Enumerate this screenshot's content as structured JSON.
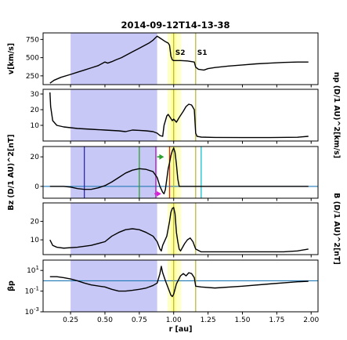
{
  "title": "2014-09-12T14-13-38",
  "colors": {
    "shade": "#c8c8f7",
    "band_light": "#ffffc8",
    "band_dark": "#ffff9e",
    "marker_olive": "#b5b533",
    "zero_line": "#1f77b4",
    "curve": "#000000",
    "vline_blue": "#2b2bb8",
    "vline_green": "#2ca02c",
    "vline_purple": "#a12aa1",
    "vline_red": "#d62728",
    "vline_cyan": "#17becf",
    "arrow_green": "#2ca02c",
    "arrow_magenta": "#d61fd6"
  },
  "chart_data": {
    "type": "line",
    "x_axis": {
      "label": "r [au]",
      "range": [
        0.05,
        2.05
      ],
      "ticks": [
        0.25,
        0.5,
        0.75,
        1.0,
        1.25,
        1.5,
        1.75,
        2.0
      ],
      "tick_labels": [
        "0.25",
        "0.50",
        "0.75",
        "1.00",
        "1.25",
        "1.50",
        "1.75",
        "2.00"
      ]
    },
    "shaded_region": [
      0.25,
      0.88
    ],
    "highlight_bands": [
      [
        0.955,
        1.055
      ],
      [
        0.98,
        1.02
      ]
    ],
    "markers": [
      {
        "x": 1.0,
        "label": "S2"
      },
      {
        "x": 1.16,
        "label": "S1"
      }
    ],
    "panels": [
      {
        "name": "velocity",
        "ylabel": "v[km/s]",
        "ylabel_side": "left",
        "scale": "linear",
        "ylim": [
          130,
          840
        ],
        "yticks": [
          250,
          500,
          750
        ],
        "ytick_labels": [
          "250",
          "500",
          "750"
        ],
        "points": [
          [
            0.1,
            150
          ],
          [
            0.13,
            190
          ],
          [
            0.18,
            230
          ],
          [
            0.25,
            270
          ],
          [
            0.3,
            300
          ],
          [
            0.35,
            330
          ],
          [
            0.4,
            360
          ],
          [
            0.45,
            390
          ],
          [
            0.48,
            420
          ],
          [
            0.5,
            440
          ],
          [
            0.52,
            425
          ],
          [
            0.55,
            445
          ],
          [
            0.58,
            470
          ],
          [
            0.62,
            500
          ],
          [
            0.66,
            540
          ],
          [
            0.7,
            580
          ],
          [
            0.74,
            620
          ],
          [
            0.78,
            660
          ],
          [
            0.82,
            700
          ],
          [
            0.85,
            740
          ],
          [
            0.88,
            795
          ],
          [
            0.9,
            770
          ],
          [
            0.92,
            745
          ],
          [
            0.94,
            720
          ],
          [
            0.96,
            700
          ],
          [
            0.97,
            670
          ],
          [
            0.98,
            520
          ],
          [
            0.99,
            470
          ],
          [
            1.0,
            460
          ],
          [
            1.02,
            460
          ],
          [
            1.05,
            460
          ],
          [
            1.1,
            455
          ],
          [
            1.15,
            440
          ],
          [
            1.16,
            370
          ],
          [
            1.18,
            340
          ],
          [
            1.22,
            330
          ],
          [
            1.25,
            350
          ],
          [
            1.3,
            365
          ],
          [
            1.4,
            385
          ],
          [
            1.5,
            400
          ],
          [
            1.6,
            415
          ],
          [
            1.7,
            425
          ],
          [
            1.8,
            435
          ],
          [
            1.9,
            440
          ],
          [
            1.98,
            440
          ]
        ]
      },
      {
        "name": "density",
        "ylabel": "np (D/1 AU)^2[km/s]",
        "ylabel_side": "right",
        "scale": "linear",
        "ylim": [
          0,
          33
        ],
        "yticks": [
          10,
          20,
          30
        ],
        "ytick_labels": [
          "10",
          "20",
          "30"
        ],
        "points": [
          [
            0.1,
            31
          ],
          [
            0.105,
            22
          ],
          [
            0.12,
            13
          ],
          [
            0.15,
            10
          ],
          [
            0.2,
            9
          ],
          [
            0.3,
            8
          ],
          [
            0.4,
            7.5
          ],
          [
            0.5,
            7
          ],
          [
            0.6,
            6.5
          ],
          [
            0.65,
            6
          ],
          [
            0.7,
            7
          ],
          [
            0.75,
            6.8
          ],
          [
            0.8,
            6.5
          ],
          [
            0.85,
            6
          ],
          [
            0.88,
            5
          ],
          [
            0.9,
            3.5
          ],
          [
            0.92,
            3
          ],
          [
            0.93,
            10
          ],
          [
            0.95,
            16
          ],
          [
            0.96,
            17
          ],
          [
            0.975,
            15
          ],
          [
            0.99,
            13
          ],
          [
            1.0,
            14
          ],
          [
            1.02,
            12
          ],
          [
            1.04,
            15
          ],
          [
            1.07,
            19
          ],
          [
            1.09,
            22
          ],
          [
            1.11,
            23.5
          ],
          [
            1.13,
            23
          ],
          [
            1.15,
            20
          ],
          [
            1.16,
            5
          ],
          [
            1.17,
            3
          ],
          [
            1.2,
            2.5
          ],
          [
            1.3,
            2.3
          ],
          [
            1.5,
            2.2
          ],
          [
            1.7,
            2.2
          ],
          [
            1.9,
            2.4
          ],
          [
            1.98,
            3
          ]
        ]
      },
      {
        "name": "bz",
        "ylabel": "Bz (D/1 AU)^2[nT]",
        "ylabel_side": "left",
        "scale": "linear",
        "ylim": [
          -8,
          27
        ],
        "yticks": [
          0,
          20
        ],
        "ytick_labels": [
          "0",
          "20"
        ],
        "zero_line": 0,
        "points": [
          [
            0.1,
            0
          ],
          [
            0.2,
            0
          ],
          [
            0.25,
            -0.5
          ],
          [
            0.3,
            -1.5
          ],
          [
            0.35,
            -2
          ],
          [
            0.4,
            -2
          ],
          [
            0.45,
            -1
          ],
          [
            0.5,
            0.5
          ],
          [
            0.55,
            3
          ],
          [
            0.6,
            6
          ],
          [
            0.65,
            9
          ],
          [
            0.7,
            11
          ],
          [
            0.75,
            12
          ],
          [
            0.8,
            11.5
          ],
          [
            0.85,
            10
          ],
          [
            0.88,
            6
          ],
          [
            0.9,
            0
          ],
          [
            0.92,
            -4
          ],
          [
            0.93,
            -5
          ],
          [
            0.94,
            -2
          ],
          [
            0.95,
            5
          ],
          [
            0.96,
            12
          ],
          [
            0.97,
            16
          ],
          [
            0.98,
            21
          ],
          [
            0.99,
            24
          ],
          [
            1.0,
            26
          ],
          [
            1.01,
            23
          ],
          [
            1.02,
            15
          ],
          [
            1.03,
            5
          ],
          [
            1.04,
            0
          ],
          [
            1.1,
            0
          ],
          [
            1.2,
            0
          ],
          [
            1.5,
            0
          ],
          [
            1.98,
            0
          ]
        ],
        "vlines": [
          {
            "x": 0.35,
            "color": "vline_blue"
          },
          {
            "x": 0.75,
            "color": "vline_green"
          },
          {
            "x": 0.87,
            "color": "vline_purple"
          },
          {
            "x": 0.97,
            "color": "vline_red"
          },
          {
            "x": 1.2,
            "color": "vline_cyan"
          }
        ],
        "arrows": [
          {
            "from": [
              0.88,
              20
            ],
            "to": [
              0.93,
              20
            ],
            "color": "arrow_green"
          },
          {
            "from": [
              0.86,
              -5
            ],
            "to": [
              0.91,
              -5
            ],
            "color": "arrow_magenta"
          }
        ]
      },
      {
        "name": "b",
        "ylabel": "B (D/1 AU)^2[nT]",
        "ylabel_side": "right",
        "scale": "linear",
        "ylim": [
          2,
          30
        ],
        "yticks": [
          10,
          20
        ],
        "ytick_labels": [
          "10",
          "20"
        ],
        "points": [
          [
            0.1,
            10
          ],
          [
            0.12,
            7
          ],
          [
            0.15,
            6
          ],
          [
            0.2,
            5.5
          ],
          [
            0.3,
            6
          ],
          [
            0.4,
            7
          ],
          [
            0.5,
            9
          ],
          [
            0.55,
            12
          ],
          [
            0.6,
            14
          ],
          [
            0.65,
            15.5
          ],
          [
            0.7,
            16
          ],
          [
            0.75,
            15.5
          ],
          [
            0.8,
            14
          ],
          [
            0.85,
            12
          ],
          [
            0.88,
            9
          ],
          [
            0.9,
            5
          ],
          [
            0.91,
            4
          ],
          [
            0.92,
            7
          ],
          [
            0.95,
            12
          ],
          [
            0.97,
            20
          ],
          [
            0.98,
            25
          ],
          [
            0.99,
            27
          ],
          [
            1.0,
            27.5
          ],
          [
            1.01,
            24
          ],
          [
            1.02,
            14
          ],
          [
            1.03,
            9
          ],
          [
            1.04,
            5
          ],
          [
            1.05,
            4
          ],
          [
            1.08,
            8
          ],
          [
            1.1,
            10
          ],
          [
            1.12,
            11
          ],
          [
            1.14,
            9
          ],
          [
            1.16,
            5
          ],
          [
            1.2,
            3.5
          ],
          [
            1.4,
            3.5
          ],
          [
            1.6,
            3.5
          ],
          [
            1.8,
            3.5
          ],
          [
            1.9,
            4
          ],
          [
            1.98,
            5
          ]
        ]
      },
      {
        "name": "beta",
        "ylabel": "βp",
        "ylabel_side": "left",
        "scale": "log",
        "ylim": [
          0.001,
          100
        ],
        "yticks": [
          0.001,
          0.1,
          10
        ],
        "ytick_labels": [
          "10^-3",
          "10^-1",
          "10^1"
        ],
        "zero_line": 1,
        "points": [
          [
            0.1,
            2.5
          ],
          [
            0.15,
            2.5
          ],
          [
            0.2,
            2
          ],
          [
            0.25,
            1.5
          ],
          [
            0.3,
            1
          ],
          [
            0.35,
            0.6
          ],
          [
            0.4,
            0.4
          ],
          [
            0.5,
            0.25
          ],
          [
            0.55,
            0.15
          ],
          [
            0.6,
            0.1
          ],
          [
            0.65,
            0.1
          ],
          [
            0.7,
            0.12
          ],
          [
            0.75,
            0.15
          ],
          [
            0.8,
            0.2
          ],
          [
            0.85,
            0.35
          ],
          [
            0.88,
            0.6
          ],
          [
            0.9,
            5
          ],
          [
            0.91,
            25
          ],
          [
            0.92,
            6
          ],
          [
            0.94,
            1
          ],
          [
            0.96,
            0.2
          ],
          [
            0.98,
            0.04
          ],
          [
            0.99,
            0.03
          ],
          [
            1.0,
            0.05
          ],
          [
            1.02,
            0.5
          ],
          [
            1.05,
            3
          ],
          [
            1.07,
            5
          ],
          [
            1.09,
            3
          ],
          [
            1.11,
            6
          ],
          [
            1.13,
            5
          ],
          [
            1.15,
            2
          ],
          [
            1.16,
            0.3
          ],
          [
            1.2,
            0.25
          ],
          [
            1.3,
            0.2
          ],
          [
            1.5,
            0.3
          ],
          [
            1.7,
            0.5
          ],
          [
            1.9,
            0.8
          ],
          [
            1.98,
            0.9
          ]
        ]
      }
    ]
  }
}
